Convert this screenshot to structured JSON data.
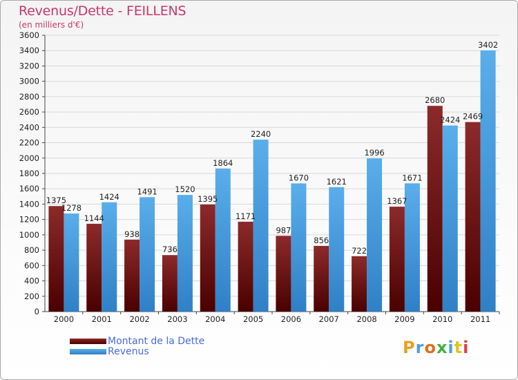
{
  "title": "Revenus/Dette - FEILLENS",
  "subtitle": "(en milliers d'€)",
  "logo": "Proxiti",
  "colors": {
    "dette": "#7b1818",
    "revenus": "#4ea4e4",
    "title": "#c8376b",
    "legend_text": "#4a6be0"
  },
  "chart_data": {
    "type": "bar",
    "categories": [
      "2000",
      "2001",
      "2002",
      "2003",
      "2004",
      "2005",
      "2006",
      "2007",
      "2008",
      "2009",
      "2010",
      "2011"
    ],
    "series": [
      {
        "name": "Montant de la Dette",
        "values": [
          1375,
          1144,
          938,
          736,
          1395,
          1171,
          987,
          856,
          722,
          1367,
          2680,
          2469
        ]
      },
      {
        "name": "Revenus",
        "values": [
          1278,
          1424,
          1491,
          1520,
          1864,
          2240,
          1670,
          1621,
          1996,
          1671,
          2424,
          3402
        ]
      }
    ],
    "ylim": [
      0,
      3600
    ],
    "ytick_step": 200,
    "grid": true,
    "legend_position": "bottom-left"
  },
  "legend": [
    {
      "label": "Montant de la Dette"
    },
    {
      "label": "Revenus"
    }
  ]
}
